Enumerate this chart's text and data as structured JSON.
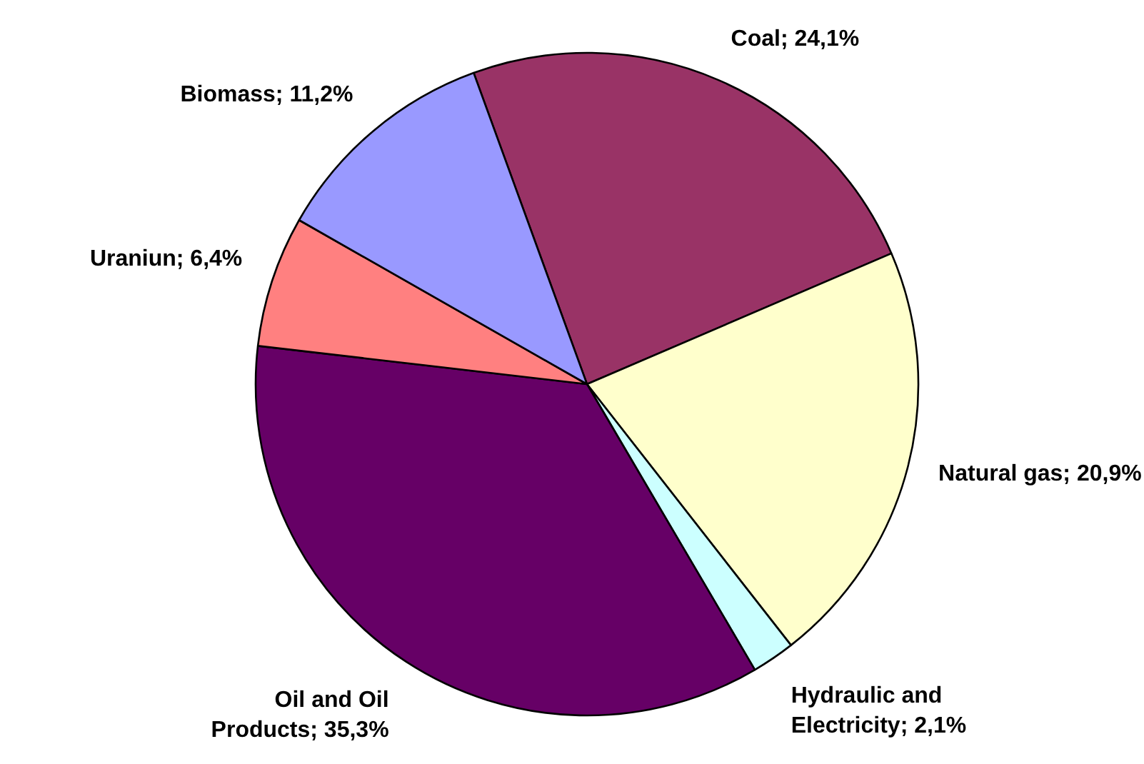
{
  "chart_data": {
    "type": "pie",
    "categories": [
      "Coal",
      "Natural gas",
      "Hydraulic and Electricity",
      "Oil and Oil Products",
      "Uraniun",
      "Biomass"
    ],
    "values": [
      24.1,
      20.9,
      2.1,
      35.3,
      6.4,
      11.2
    ],
    "value_labels": [
      "24,1%",
      "20,9%",
      "2,1%",
      "35,3%",
      "6,4%",
      "11,2%"
    ],
    "colors": [
      "#993366",
      "#ffffcc",
      "#ccffff",
      "#660066",
      "#ff8080",
      "#9999ff"
    ]
  }
}
